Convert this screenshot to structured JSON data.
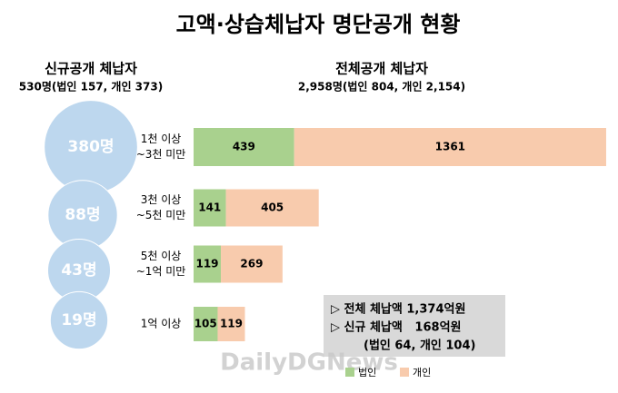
{
  "chart_data": {
    "type": "bar",
    "title": "고액·상습체납자 명단공개 현황",
    "left_title": "신규공개 체납자",
    "left_subtitle": "530명(법인 157, 개인 373)",
    "right_title": "전체공개 체납자",
    "right_subtitle": "2,958명(법인 804, 개인 2,154)",
    "categories": [
      [
        "1천 이상",
        "~3천 미만"
      ],
      [
        "3천 이상",
        "~5천 미만"
      ],
      [
        "5천 이상",
        "~1억 미만"
      ],
      [
        "1억 이상"
      ]
    ],
    "new_counts": {
      "values": [
        380,
        88,
        43,
        19
      ],
      "value_labels": [
        "380명",
        "88명",
        "43명",
        "19명"
      ],
      "color": "#bdd7ee"
    },
    "series": [
      {
        "name": "법인",
        "color": "#a9d18e",
        "values": [
          439,
          141,
          119,
          105
        ]
      },
      {
        "name": "개인",
        "color": "#f8cbad",
        "values": [
          1361,
          405,
          269,
          119
        ]
      }
    ],
    "summary": [
      "▷ 전체 체납액 1,374억원",
      "▷ 신규 체납액   168억원",
      "(법인 64, 개인 104)"
    ],
    "watermark": "DailyDGNews"
  }
}
